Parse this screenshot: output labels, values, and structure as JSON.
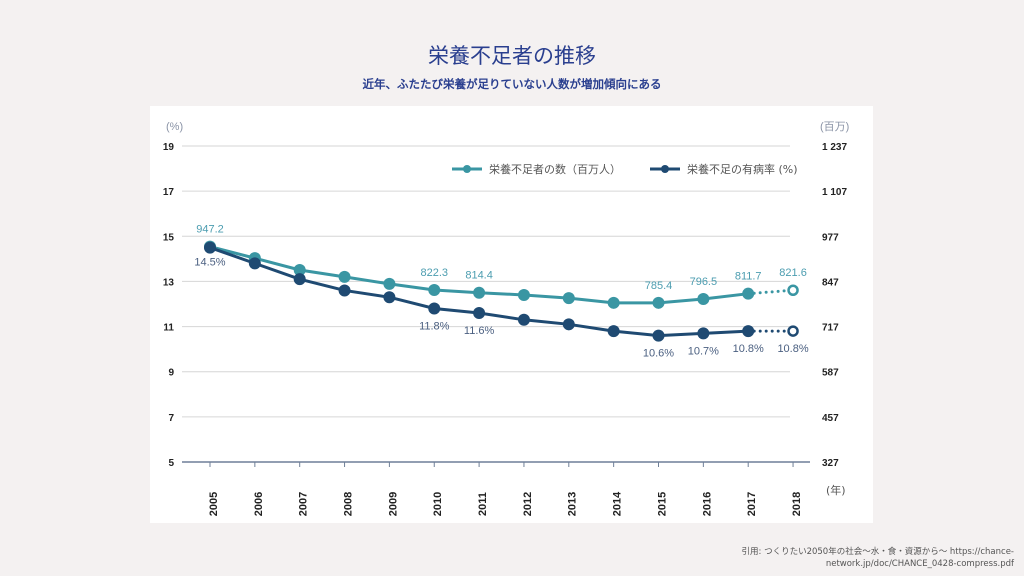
{
  "title": "栄養不足者の推移",
  "subtitle": "近年、ふたたび栄養が足りていない人数が増加傾向にある",
  "citation": "引用: つくりたい2050年の社会〜水・食・資源から〜 https://chance-network.jp/doc/CHANCE_0428-compress.pdf",
  "colors": {
    "teal": "#3a96a3",
    "navy": "#1f4a72",
    "title": "#2a3f8f",
    "grid": "#d6d6d6",
    "axis": "#6f7f98"
  },
  "chart_data": {
    "type": "line",
    "title": "栄養不足者の推移",
    "subtitle": "近年、ふたたび栄養が足りていない人数が増加傾向にある",
    "xlabel": "(年)",
    "ylabel_left": "(%)",
    "ylabel_right": "(百万)",
    "categories": [
      "2005",
      "2006",
      "2007",
      "2008",
      "2009",
      "2010",
      "2011",
      "2012",
      "2013",
      "2014",
      "2015",
      "2016",
      "2017",
      "2018"
    ],
    "left_axis": {
      "ylim": [
        5,
        19
      ],
      "ticks": [
        19,
        17,
        15,
        13,
        11,
        9,
        7,
        5
      ]
    },
    "right_axis": {
      "ylim": [
        327,
        1237
      ],
      "ticks": [
        "1 237",
        "1 107",
        "977",
        "847",
        "717",
        "587",
        "457",
        "327"
      ],
      "tick_values": [
        1237,
        1107,
        977,
        847,
        717,
        587,
        457,
        327
      ]
    },
    "grid": true,
    "legend_position": "top-right",
    "series": [
      {
        "name": "栄養不足者の数（百万人）",
        "axis": "right",
        "color": "#3a96a3",
        "values": [
          947.2,
          914,
          880,
          860,
          840,
          822.3,
          814.4,
          808,
          799,
          785.4,
          785.4,
          796.5,
          811.7,
          821.6
        ],
        "labels": {
          "0": "947.2",
          "5": "822.3",
          "6": "814.4",
          "10": "785.4",
          "11": "796.5",
          "12": "811.7",
          "13": "821.6"
        },
        "projected_from_index": 12
      },
      {
        "name": "栄養不足の有病率 (%)",
        "axis": "left",
        "color": "#1f4a72",
        "values": [
          14.5,
          13.8,
          13.1,
          12.6,
          12.3,
          11.8,
          11.6,
          11.3,
          11.1,
          10.8,
          10.6,
          10.7,
          10.8,
          10.8
        ],
        "labels": {
          "0": "14.5%",
          "5": "11.8%",
          "6": "11.6%",
          "10": "10.6%",
          "11": "10.7%",
          "12": "10.8%",
          "13": "10.8%"
        },
        "projected_from_index": 12
      }
    ]
  }
}
